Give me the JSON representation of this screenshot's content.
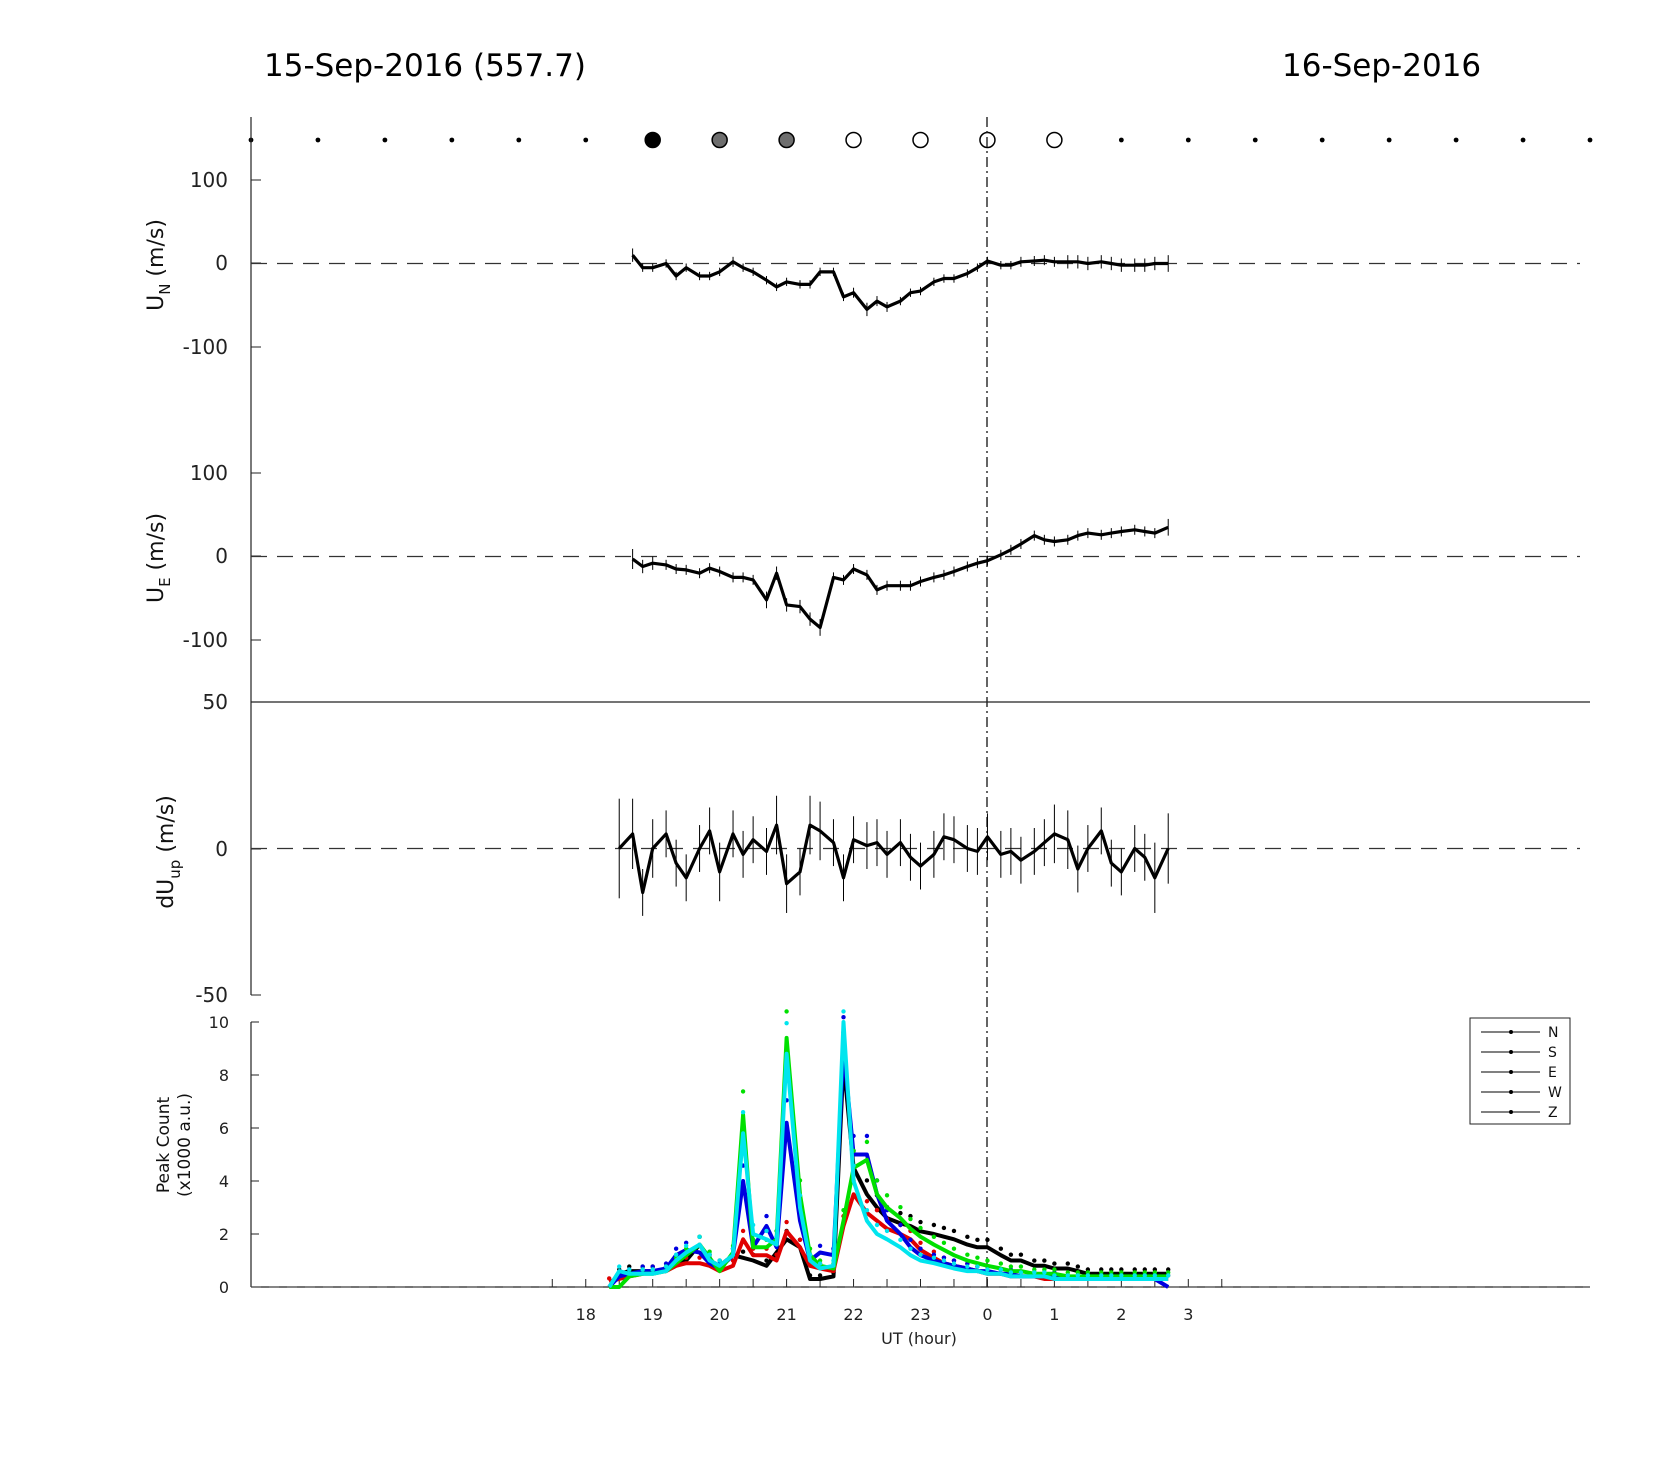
{
  "header": {
    "left_title": "15-Sep-2016 (557.7)",
    "right_title": "16-Sep-2016"
  },
  "moon_markers": {
    "hours": [
      13,
      14,
      15,
      16,
      17,
      18,
      19,
      20,
      21,
      22,
      23,
      24,
      25,
      26,
      27,
      28,
      29,
      30,
      31,
      32,
      33
    ],
    "styles": [
      "dot",
      "dot",
      "dot",
      "dot",
      "dot",
      "dot",
      "filled",
      "gray",
      "gray",
      "open",
      "open",
      "open",
      "open",
      "dot",
      "dot",
      "dot",
      "dot",
      "dot",
      "dot",
      "dot",
      "dot"
    ]
  },
  "chart_data": [
    {
      "type": "line",
      "panel": "u_north",
      "ylabel_main": "U",
      "ylabel_sub": "N",
      "ylabel_unit": " (m/s)",
      "yticks": [
        "100",
        "0",
        "-100"
      ],
      "ylim": [
        -100,
        100
      ],
      "x_hours": [
        18.7,
        18.85,
        19.0,
        19.2,
        19.35,
        19.5,
        19.7,
        19.85,
        20.0,
        20.2,
        20.35,
        20.5,
        20.7,
        20.85,
        21.0,
        21.2,
        21.35,
        21.5,
        21.7,
        21.85,
        22.0,
        22.2,
        22.35,
        22.5,
        22.7,
        22.85,
        23.0,
        23.2,
        23.35,
        23.5,
        23.7,
        23.85,
        24.0,
        24.2,
        24.35,
        24.5,
        24.7,
        24.85,
        25.0,
        25.2,
        25.35,
        25.5,
        25.7,
        25.85,
        26.0,
        26.2,
        26.35,
        26.5,
        26.7
      ],
      "values": [
        10,
        -5,
        -5,
        0,
        -15,
        -5,
        -15,
        -15,
        -10,
        2,
        -5,
        -10,
        -20,
        -28,
        -22,
        -25,
        -25,
        -10,
        -10,
        -40,
        -35,
        -55,
        -45,
        -52,
        -45,
        -35,
        -33,
        -22,
        -18,
        -18,
        -12,
        -5,
        3,
        -2,
        -2,
        2,
        3,
        4,
        2,
        2,
        2,
        0,
        2,
        0,
        -2,
        -2,
        -2,
        0,
        0
      ],
      "errors": [
        8,
        5,
        5,
        5,
        5,
        5,
        5,
        5,
        5,
        6,
        5,
        5,
        5,
        5,
        5,
        5,
        5,
        5,
        5,
        5,
        6,
        8,
        6,
        6,
        5,
        5,
        5,
        5,
        5,
        5,
        5,
        5,
        5,
        5,
        5,
        6,
        6,
        6,
        6,
        8,
        8,
        8,
        8,
        8,
        8,
        8,
        8,
        8,
        10
      ],
      "zero_line": "dashed"
    },
    {
      "type": "line",
      "panel": "u_east",
      "ylabel_main": "U",
      "ylabel_sub": "E",
      "ylabel_unit": " (m/s)",
      "yticks": [
        "100",
        "0",
        "-100"
      ],
      "ylim": [
        -100,
        100
      ],
      "x_hours": [
        18.7,
        18.85,
        19.0,
        19.2,
        19.35,
        19.5,
        19.7,
        19.85,
        20.0,
        20.2,
        20.35,
        20.5,
        20.7,
        20.85,
        21.0,
        21.2,
        21.35,
        21.5,
        21.7,
        21.85,
        22.0,
        22.2,
        22.35,
        22.5,
        22.7,
        22.85,
        23.0,
        23.2,
        23.35,
        23.5,
        23.7,
        23.85,
        24.0,
        24.2,
        24.35,
        24.5,
        24.7,
        24.85,
        25.0,
        25.2,
        25.35,
        25.5,
        25.7,
        25.85,
        26.0,
        26.2,
        26.35,
        26.5,
        26.7
      ],
      "values": [
        -3,
        -12,
        -8,
        -10,
        -15,
        -16,
        -20,
        -14,
        -18,
        -25,
        -25,
        -28,
        -52,
        -20,
        -58,
        -60,
        -75,
        -85,
        -25,
        -28,
        -15,
        -22,
        -40,
        -35,
        -35,
        -35,
        -30,
        -25,
        -22,
        -18,
        -12,
        -8,
        -5,
        2,
        8,
        15,
        25,
        20,
        18,
        20,
        25,
        28,
        26,
        28,
        30,
        32,
        30,
        28,
        35
      ],
      "errors": [
        12,
        8,
        8,
        6,
        6,
        6,
        6,
        6,
        6,
        6,
        6,
        6,
        10,
        8,
        8,
        8,
        8,
        10,
        6,
        6,
        6,
        6,
        6,
        6,
        6,
        6,
        6,
        6,
        6,
        6,
        6,
        6,
        6,
        6,
        6,
        6,
        6,
        6,
        6,
        6,
        6,
        6,
        6,
        6,
        6,
        6,
        6,
        6,
        10
      ],
      "zero_line": "dashed"
    },
    {
      "type": "line",
      "panel": "du_up",
      "ylabel_main": "dU",
      "ylabel_sub": "up",
      "ylabel_unit": " (m/s)",
      "yticks": [
        "50",
        "0",
        "-50"
      ],
      "ylim": [
        -50,
        50
      ],
      "x_hours": [
        18.5,
        18.7,
        18.85,
        19.0,
        19.2,
        19.35,
        19.5,
        19.7,
        19.85,
        20.0,
        20.2,
        20.35,
        20.5,
        20.7,
        20.85,
        21.0,
        21.2,
        21.35,
        21.5,
        21.7,
        21.85,
        22.0,
        22.2,
        22.35,
        22.5,
        22.7,
        22.85,
        23.0,
        23.2,
        23.35,
        23.5,
        23.7,
        23.85,
        24.0,
        24.2,
        24.35,
        24.5,
        24.7,
        24.85,
        25.0,
        25.2,
        25.35,
        25.5,
        25.7,
        25.85,
        26.0,
        26.2,
        26.35,
        26.5,
        26.7
      ],
      "values": [
        0,
        5,
        -15,
        0,
        5,
        -5,
        -10,
        0,
        6,
        -8,
        5,
        -2,
        3,
        -1,
        8,
        -12,
        -8,
        8,
        6,
        2,
        -10,
        3,
        1,
        2,
        -2,
        2,
        -3,
        -6,
        -2,
        4,
        3,
        0,
        -1,
        4,
        -2,
        -1,
        -4,
        -1,
        2,
        5,
        3,
        -7,
        0,
        6,
        -5,
        -8,
        0,
        -3,
        -10,
        0
      ],
      "errors": [
        17,
        12,
        8,
        10,
        8,
        8,
        8,
        8,
        8,
        10,
        8,
        8,
        8,
        8,
        10,
        10,
        8,
        10,
        10,
        8,
        8,
        8,
        8,
        8,
        8,
        8,
        8,
        8,
        8,
        8,
        8,
        8,
        8,
        8,
        8,
        8,
        8,
        8,
        8,
        10,
        10,
        8,
        8,
        8,
        8,
        8,
        8,
        8,
        12,
        12
      ],
      "zero_line": "dashed"
    },
    {
      "type": "line",
      "panel": "peak_count",
      "ylabel_line1": "Peak Count",
      "ylabel_line2": "(x1000 a.u.)",
      "xlabel": "UT (hour)",
      "xticks": [
        "18",
        "19",
        "20",
        "21",
        "22",
        "23",
        "0",
        "1",
        "2",
        "3"
      ],
      "xtick_hours": [
        18,
        19,
        20,
        21,
        22,
        23,
        24,
        25,
        26,
        27
      ],
      "yticks": [
        "10",
        "8",
        "6",
        "4",
        "2",
        "0"
      ],
      "ylim": [
        0,
        10
      ],
      "x_hours": [
        18.35,
        18.5,
        18.65,
        18.85,
        19.0,
        19.2,
        19.35,
        19.5,
        19.7,
        19.85,
        20.0,
        20.2,
        20.35,
        20.5,
        20.7,
        20.85,
        21.0,
        21.2,
        21.35,
        21.5,
        21.7,
        21.85,
        22.0,
        22.2,
        22.35,
        22.5,
        22.7,
        22.85,
        23.0,
        23.2,
        23.35,
        23.5,
        23.7,
        23.85,
        24.0,
        24.2,
        24.35,
        24.5,
        24.7,
        24.85,
        25.0,
        25.2,
        25.35,
        25.5,
        25.7,
        25.85,
        26.0,
        26.2,
        26.35,
        26.5,
        26.7
      ],
      "series": [
        {
          "name": "N",
          "color": "#000000",
          "values": [
            0.0,
            0.5,
            0.6,
            0.6,
            0.6,
            0.6,
            0.9,
            1.0,
            1.6,
            1.0,
            0.8,
            1.2,
            1.1,
            1.0,
            0.8,
            1.3,
            1.8,
            1.5,
            0.3,
            0.3,
            0.4,
            8.5,
            4.5,
            3.5,
            3.0,
            2.6,
            2.4,
            2.3,
            2.1,
            2.0,
            1.9,
            1.8,
            1.6,
            1.5,
            1.5,
            1.2,
            1.0,
            1.0,
            0.8,
            0.8,
            0.7,
            0.7,
            0.6,
            0.5,
            0.5,
            0.5,
            0.5,
            0.5,
            0.5,
            0.5,
            0.5
          ]
        },
        {
          "name": "S",
          "color": "#e00000",
          "values": [
            0.2,
            0.3,
            0.4,
            0.5,
            0.6,
            0.6,
            0.8,
            0.9,
            0.9,
            0.8,
            0.6,
            0.8,
            1.8,
            1.2,
            1.2,
            1.0,
            2.1,
            1.5,
            0.8,
            0.7,
            0.6,
            2.3,
            3.5,
            2.8,
            2.5,
            2.2,
            2.0,
            1.8,
            1.4,
            1.1,
            0.9,
            0.8,
            0.7,
            0.6,
            0.5,
            0.5,
            0.4,
            0.4,
            0.4,
            0.3,
            0.3,
            0.3,
            0.3,
            0.3,
            0.3,
            0.3,
            0.3,
            0.3,
            0.3,
            0.3,
            0.3
          ]
        },
        {
          "name": "E",
          "color": "#0000e0",
          "values": [
            0.0,
            0.4,
            0.5,
            0.6,
            0.6,
            0.7,
            1.2,
            1.4,
            1.3,
            0.9,
            0.7,
            1.2,
            4.0,
            1.5,
            2.3,
            1.5,
            6.2,
            2.5,
            1.0,
            1.3,
            1.2,
            9.0,
            5.0,
            5.0,
            3.5,
            2.5,
            2.0,
            1.5,
            1.2,
            1.0,
            0.9,
            0.8,
            0.7,
            0.6,
            0.6,
            0.5,
            0.5,
            0.4,
            0.4,
            0.4,
            0.4,
            0.3,
            0.3,
            0.3,
            0.3,
            0.3,
            0.3,
            0.3,
            0.3,
            0.3,
            0.0
          ]
        },
        {
          "name": "W",
          "color": "#00e000",
          "values": [
            0.0,
            0.0,
            0.4,
            0.5,
            0.5,
            0.6,
            0.9,
            1.2,
            1.6,
            1.1,
            0.6,
            1.3,
            6.5,
            1.5,
            1.5,
            1.8,
            9.4,
            3.5,
            1.2,
            0.8,
            0.7,
            2.5,
            4.5,
            4.8,
            3.5,
            3.0,
            2.6,
            2.2,
            1.9,
            1.6,
            1.4,
            1.2,
            1.0,
            0.9,
            0.8,
            0.7,
            0.6,
            0.6,
            0.5,
            0.5,
            0.5,
            0.4,
            0.4,
            0.4,
            0.4,
            0.4,
            0.4,
            0.4,
            0.4,
            0.4,
            0.4
          ]
        },
        {
          "name": "Z",
          "color": "#00e5ee",
          "values": [
            0.0,
            0.6,
            0.5,
            0.5,
            0.5,
            0.6,
            1.0,
            1.3,
            1.6,
            1.0,
            0.8,
            1.2,
            5.8,
            2.0,
            1.8,
            1.6,
            8.8,
            3.0,
            1.0,
            0.7,
            0.8,
            10.0,
            4.0,
            2.5,
            2.0,
            1.8,
            1.5,
            1.2,
            1.0,
            0.9,
            0.8,
            0.7,
            0.6,
            0.6,
            0.5,
            0.5,
            0.4,
            0.4,
            0.4,
            0.4,
            0.3,
            0.3,
            0.3,
            0.3,
            0.3,
            0.3,
            0.3,
            0.3,
            0.3,
            0.3,
            0.3
          ]
        }
      ],
      "legend_position": "upper-right",
      "legend_line_color": "#000000"
    }
  ],
  "axis": {
    "x_min_hours": 13,
    "x_max_hours": 33,
    "midnight_hour": 24,
    "midnight_line": "dash-dot"
  }
}
